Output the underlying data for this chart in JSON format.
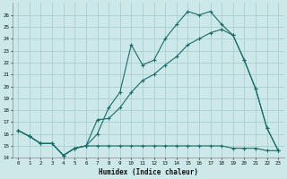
{
  "xlabel": "Humidex (Indice chaleur)",
  "bg_color": "#cce8e8",
  "grid_color": "#aacece",
  "line_color": "#1a6b6b",
  "xlim": [
    -0.5,
    23.5
  ],
  "ylim": [
    14,
    27
  ],
  "xticks": [
    0,
    1,
    2,
    3,
    4,
    5,
    6,
    7,
    8,
    9,
    10,
    11,
    12,
    13,
    14,
    15,
    16,
    17,
    18,
    19,
    20,
    21,
    22,
    23
  ],
  "yticks": [
    14,
    15,
    16,
    17,
    18,
    19,
    20,
    21,
    22,
    23,
    24,
    25,
    26
  ],
  "series1_x": [
    0,
    1,
    2,
    3,
    4,
    5,
    6,
    7,
    8,
    9,
    10,
    11,
    12,
    13,
    14,
    15,
    16,
    17,
    18,
    19,
    20,
    21,
    22,
    23
  ],
  "series1_y": [
    16.3,
    15.8,
    15.2,
    15.2,
    14.2,
    14.8,
    15.0,
    16.0,
    18.2,
    19.5,
    23.5,
    21.8,
    22.2,
    24.0,
    25.2,
    26.3,
    26.0,
    26.3,
    25.2,
    24.3,
    22.2,
    19.8,
    16.5,
    14.6
  ],
  "series2_x": [
    0,
    1,
    2,
    3,
    4,
    5,
    6,
    7,
    8,
    9,
    10,
    11,
    12,
    13,
    14,
    15,
    16,
    17,
    18,
    19,
    20,
    21,
    22,
    23
  ],
  "series2_y": [
    16.3,
    15.8,
    15.2,
    15.2,
    14.2,
    14.8,
    15.0,
    15.0,
    15.0,
    15.0,
    15.0,
    15.0,
    15.0,
    15.0,
    15.0,
    15.0,
    15.0,
    15.0,
    15.0,
    14.8,
    14.8,
    14.8,
    14.6,
    14.6
  ],
  "series3_x": [
    0,
    1,
    2,
    3,
    4,
    5,
    6,
    7,
    8,
    9,
    10,
    11,
    12,
    13,
    14,
    15,
    16,
    17,
    18,
    19,
    20,
    21,
    22,
    23
  ],
  "series3_y": [
    16.3,
    15.8,
    15.2,
    15.2,
    14.2,
    14.8,
    15.0,
    17.2,
    17.3,
    18.2,
    19.5,
    20.5,
    21.0,
    21.8,
    22.5,
    23.5,
    24.0,
    24.5,
    24.8,
    24.3,
    22.2,
    19.8,
    16.5,
    14.6
  ]
}
